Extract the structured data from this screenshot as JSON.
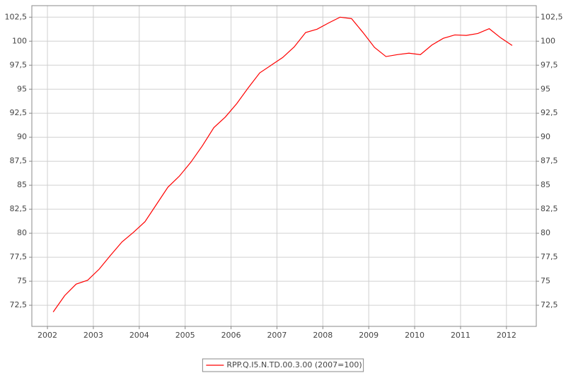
{
  "chart_data": {
    "type": "line",
    "x": [
      2002.125,
      2002.375,
      2002.625,
      2002.875,
      2003.125,
      2003.375,
      2003.625,
      2003.875,
      2004.125,
      2004.375,
      2004.625,
      2004.875,
      2005.125,
      2005.375,
      2005.625,
      2005.875,
      2006.125,
      2006.375,
      2006.625,
      2006.875,
      2007.125,
      2007.375,
      2007.625,
      2007.875,
      2008.125,
      2008.375,
      2008.625,
      2008.875,
      2009.125,
      2009.375,
      2009.625,
      2009.875,
      2010.125,
      2010.375,
      2010.625,
      2010.875,
      2011.125,
      2011.375,
      2011.625,
      2011.875,
      2012.125
    ],
    "series": [
      {
        "name": "RPP.Q.I5.N.TD.00.3.00 (2007=100)",
        "color": "#ff0000",
        "values": [
          71.8,
          73.5,
          74.7,
          75.1,
          76.25,
          77.7,
          79.1,
          80.1,
          81.2,
          83.0,
          84.8,
          85.95,
          87.4,
          89.1,
          91.0,
          92.1,
          93.5,
          95.15,
          96.7,
          97.5,
          98.3,
          99.4,
          100.9,
          101.25,
          101.9,
          102.5,
          102.35,
          100.9,
          99.35,
          98.4,
          98.6,
          98.75,
          98.6,
          99.6,
          100.3,
          100.65,
          100.6,
          100.8,
          101.3,
          100.35,
          99.55
        ]
      }
    ],
    "xlim": [
      2001.66,
      2012.65
    ],
    "xticks": [
      2002,
      2003,
      2004,
      2005,
      2006,
      2007,
      2008,
      2009,
      2010,
      2011,
      2012
    ],
    "ylim": [
      70.3,
      103.7
    ],
    "yticks": [
      {
        "value": 72.5,
        "label": "72,5"
      },
      75,
      {
        "value": 77.5,
        "label": "77,5"
      },
      80,
      {
        "value": 82.5,
        "label": "82,5"
      },
      85,
      {
        "value": 87.5,
        "label": "87,5"
      },
      90,
      {
        "value": 92.5,
        "label": "92,5"
      },
      95,
      {
        "value": 97.5,
        "label": "97,5"
      },
      100,
      {
        "value": 102.5,
        "label": "102,5"
      }
    ],
    "y2lim": [
      70.3,
      103.7
    ],
    "y2ticks": [
      {
        "value": 72.5,
        "label": "72,5"
      },
      75,
      {
        "value": 77.5,
        "label": "77,5"
      },
      80,
      {
        "value": 82.5,
        "label": "82,5"
      },
      85,
      {
        "value": 87.5,
        "label": "87,5"
      },
      90,
      {
        "value": 92.5,
        "label": "92,5"
      },
      95,
      {
        "value": 97.5,
        "label": "97,5"
      },
      100,
      {
        "value": 102.5,
        "label": "102,5"
      }
    ],
    "grid": true,
    "legend": "bottom"
  }
}
